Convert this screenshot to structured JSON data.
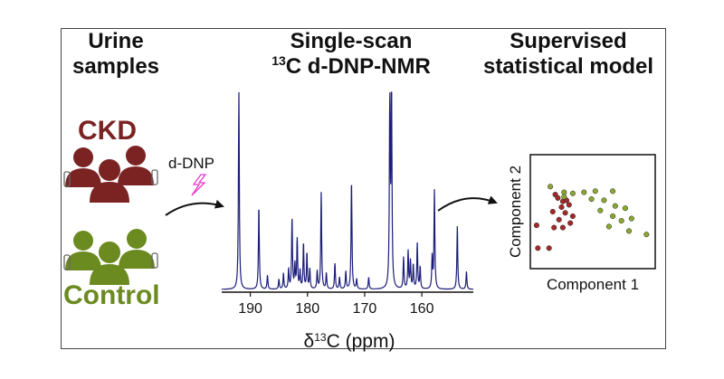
{
  "headings": {
    "urine_l1": "Urine",
    "urine_l2": "samples",
    "scan_l1": "Single-scan",
    "scan_sup": "13",
    "scan_l2": "C d-DNP-NMR",
    "model_l1": "Supervised",
    "model_l2": "statistical model"
  },
  "groups": {
    "ckd_label": "CKD",
    "ckd_color": "#7b2323",
    "control_label": "Control",
    "control_color": "#6b8a1f"
  },
  "arrow1_label": "d-DNP",
  "chart_data": [
    {
      "type": "line",
      "title": "Single-scan 13C d-DNP-NMR spectrum",
      "xlabel": "δ13C (ppm)",
      "xlim": [
        195,
        151
      ],
      "x_ticks": [
        "190",
        "180",
        "170",
        "160"
      ],
      "x_tick_values": [
        190,
        180,
        170,
        160
      ],
      "peaks": [
        {
          "ppm": 192.0,
          "h": 1.0
        },
        {
          "ppm": 188.5,
          "h": 0.42
        },
        {
          "ppm": 187.0,
          "h": 0.07
        },
        {
          "ppm": 185.0,
          "h": 0.05
        },
        {
          "ppm": 184.2,
          "h": 0.08
        },
        {
          "ppm": 183.3,
          "h": 0.1
        },
        {
          "ppm": 182.7,
          "h": 0.36
        },
        {
          "ppm": 182.2,
          "h": 0.12
        },
        {
          "ppm": 181.8,
          "h": 0.25
        },
        {
          "ppm": 181.3,
          "h": 0.09
        },
        {
          "ppm": 180.7,
          "h": 0.23
        },
        {
          "ppm": 180.1,
          "h": 0.18
        },
        {
          "ppm": 179.6,
          "h": 0.1
        },
        {
          "ppm": 178.3,
          "h": 0.09
        },
        {
          "ppm": 177.6,
          "h": 0.49
        },
        {
          "ppm": 176.7,
          "h": 0.08
        },
        {
          "ppm": 175.2,
          "h": 0.13
        },
        {
          "ppm": 174.4,
          "h": 0.06
        },
        {
          "ppm": 173.3,
          "h": 0.09
        },
        {
          "ppm": 172.3,
          "h": 0.55
        },
        {
          "ppm": 171.4,
          "h": 0.05
        },
        {
          "ppm": 169.3,
          "h": 0.06
        },
        {
          "ppm": 165.6,
          "h": 1.0
        },
        {
          "ppm": 165.3,
          "h": 1.0
        },
        {
          "ppm": 163.2,
          "h": 0.16
        },
        {
          "ppm": 162.4,
          "h": 0.19
        },
        {
          "ppm": 162.0,
          "h": 0.14
        },
        {
          "ppm": 161.5,
          "h": 0.12
        },
        {
          "ppm": 160.8,
          "h": 0.23
        },
        {
          "ppm": 160.3,
          "h": 0.11
        },
        {
          "ppm": 158.2,
          "h": 0.16
        },
        {
          "ppm": 157.8,
          "h": 0.5
        },
        {
          "ppm": 153.8,
          "h": 0.32
        },
        {
          "ppm": 152.2,
          "h": 0.09
        }
      ]
    },
    {
      "type": "scatter",
      "xlabel": "Component 1",
      "ylabel": "Component 2",
      "xlim": [
        0,
        10
      ],
      "ylim": [
        0,
        10
      ],
      "series": [
        {
          "name": "CKD",
          "color": "#a32a2a",
          "points": [
            [
              2.0,
              6.5
            ],
            [
              2.2,
              6.2
            ],
            [
              2.6,
              5.9
            ],
            [
              2.9,
              6.0
            ],
            [
              2.5,
              5.4
            ],
            [
              3.1,
              5.6
            ],
            [
              1.8,
              5.0
            ],
            [
              2.8,
              4.9
            ],
            [
              3.4,
              4.6
            ],
            [
              2.3,
              4.3
            ],
            [
              1.9,
              3.6
            ],
            [
              2.6,
              3.6
            ],
            [
              3.2,
              4.0
            ],
            [
              0.5,
              3.8
            ],
            [
              0.6,
              1.8
            ],
            [
              1.5,
              1.8
            ]
          ]
        },
        {
          "name": "Control",
          "color": "#8aa830",
          "points": [
            [
              1.6,
              7.2
            ],
            [
              2.7,
              6.7
            ],
            [
              3.4,
              6.6
            ],
            [
              4.3,
              6.7
            ],
            [
              5.2,
              6.8
            ],
            [
              6.6,
              6.8
            ],
            [
              4.9,
              6.1
            ],
            [
              5.9,
              6.0
            ],
            [
              6.8,
              5.5
            ],
            [
              5.6,
              5.1
            ],
            [
              7.6,
              5.3
            ],
            [
              6.6,
              4.6
            ],
            [
              7.3,
              4.2
            ],
            [
              8.1,
              4.4
            ],
            [
              6.3,
              3.7
            ],
            [
              7.9,
              3.3
            ],
            [
              9.3,
              3.0
            ],
            [
              2.7,
              6.3
            ]
          ]
        }
      ]
    }
  ]
}
